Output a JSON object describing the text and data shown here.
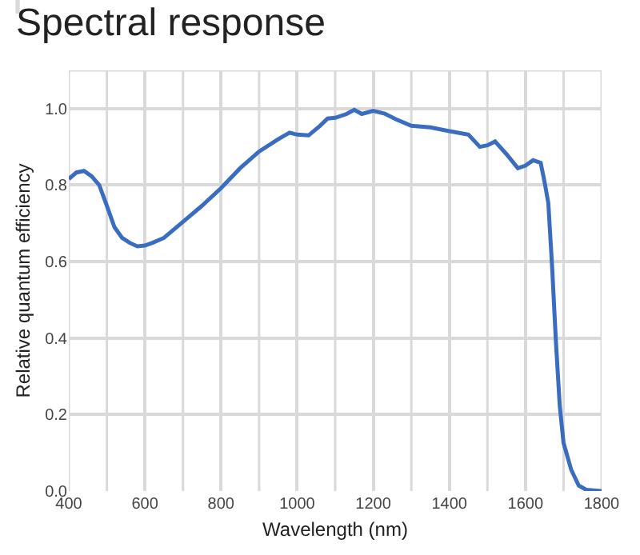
{
  "chart_data": {
    "type": "line",
    "title": "Spectral response",
    "xlabel": "Wavelength (nm)",
    "ylabel": "Relative quantum efficiency",
    "x": [
      400,
      420,
      440,
      460,
      480,
      500,
      520,
      540,
      560,
      580,
      600,
      620,
      650,
      700,
      750,
      800,
      850,
      900,
      950,
      980,
      1000,
      1030,
      1060,
      1080,
      1100,
      1130,
      1150,
      1170,
      1200,
      1230,
      1260,
      1300,
      1350,
      1400,
      1450,
      1480,
      1500,
      1520,
      1550,
      1580,
      1600,
      1620,
      1640,
      1650,
      1660,
      1670,
      1680,
      1690,
      1700,
      1720,
      1740,
      1760,
      1800
    ],
    "series": [
      {
        "color": "#3a6cc0",
        "values": [
          0.816,
          0.833,
          0.837,
          0.823,
          0.8,
          0.746,
          0.69,
          0.662,
          0.649,
          0.64,
          0.642,
          0.649,
          0.662,
          0.704,
          0.746,
          0.792,
          0.844,
          0.888,
          0.92,
          0.937,
          0.932,
          0.93,
          0.955,
          0.974,
          0.976,
          0.986,
          0.997,
          0.986,
          0.994,
          0.987,
          0.972,
          0.955,
          0.951,
          0.941,
          0.932,
          0.9,
          0.904,
          0.914,
          0.881,
          0.844,
          0.851,
          0.865,
          0.858,
          0.809,
          0.753,
          0.586,
          0.39,
          0.223,
          0.126,
          0.056,
          0.014,
          0.003,
          0
        ]
      }
    ],
    "xlim": [
      400,
      1800
    ],
    "xticks": [
      400,
      600,
      800,
      1000,
      1200,
      1400,
      1600,
      1800
    ],
    "ylim": [
      0,
      1.1
    ],
    "yticks": [
      {
        "value": 0,
        "label": "0.0"
      },
      {
        "value": 0.2,
        "label": "0.2"
      },
      {
        "value": 0.4,
        "label": "0.4"
      },
      {
        "value": 0.6,
        "label": "0.6"
      },
      {
        "value": 0.8,
        "label": "0.8"
      },
      {
        "value": 1,
        "label": "1.0"
      }
    ],
    "grid": true,
    "legend": false,
    "marker": "none",
    "line_style": "solid"
  }
}
